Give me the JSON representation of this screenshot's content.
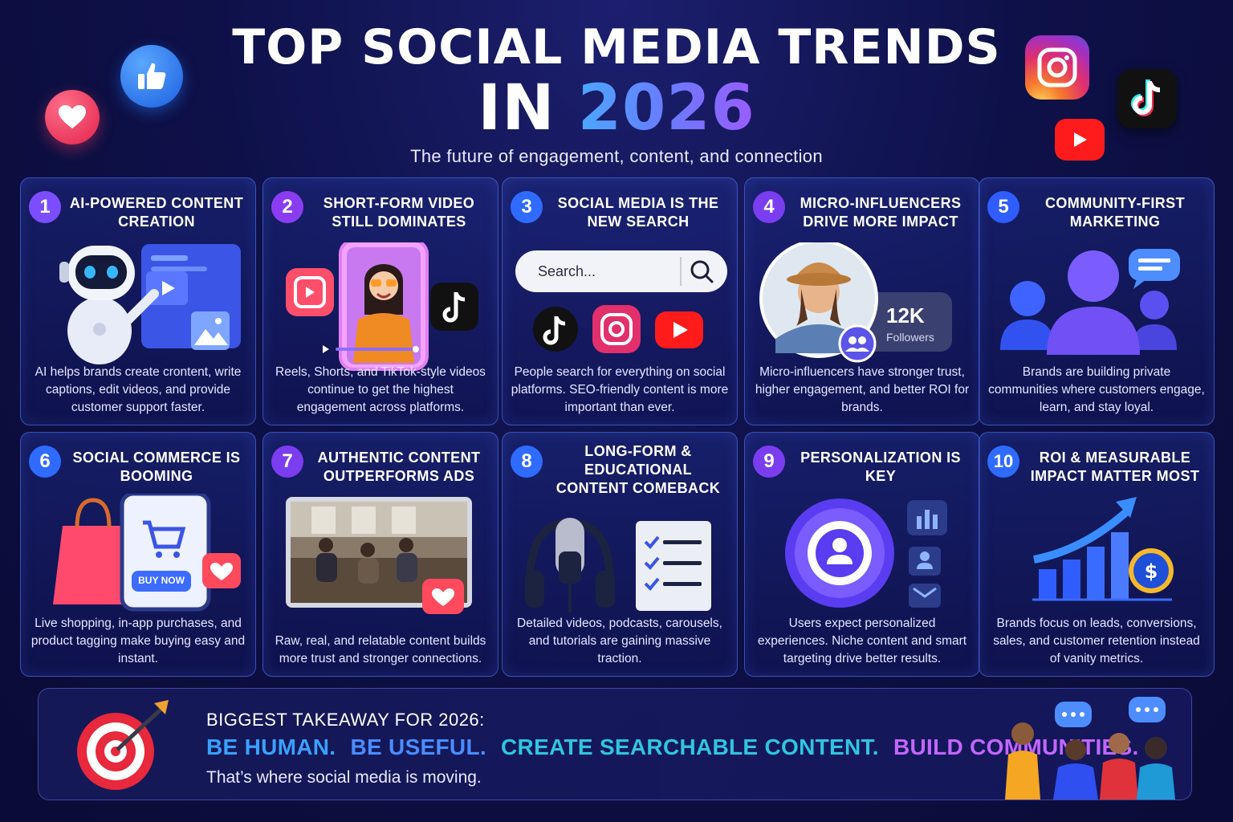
{
  "header": {
    "title_line1": "TOP SOCIAL MEDIA TRENDS",
    "title_in": "IN",
    "title_year": "2026",
    "subtitle": "The future of engagement, content, and connection"
  },
  "trends": [
    {
      "number": "1",
      "title": "AI-POWERED CONTENT CREATION",
      "description": "AI helps brands create crontent, write captions, edit videos, and provide customer support faster.",
      "color": "#7b4dff"
    },
    {
      "number": "2",
      "title": "SHORT-FORM VIDEO STILL DOMINATES",
      "description": "Reels, Shorts, and TikTok-style videos continue to get the highest engagement across platforms.",
      "color": "#8a3df0"
    },
    {
      "number": "3",
      "title": "SOCIAL MEDIA IS THE NEW SEARCH",
      "description": "People search for everything on social platforms. SEO-friendly content is more important than ever.",
      "color": "#2f6bff",
      "search_placeholder": "Search..."
    },
    {
      "number": "4",
      "title": "MICRO-INFLUENCERS DRIVE MORE IMPACT",
      "description": "Micro-influencers have stronger trust, higher engagement, and better ROI for brands.",
      "color": "#7b3df0",
      "followers_count": "12K",
      "followers_label": "Followers"
    },
    {
      "number": "5",
      "title": "COMMUNITY-FIRST MARKETING",
      "description": "Brands are building private communities where customers engage, learn, and stay loyal.",
      "color": "#2f5dff"
    },
    {
      "number": "6",
      "title": "SOCIAL COMMERCE IS BOOMING",
      "description": "Live shopping, in-app purchases, and product tagging make buying easy and instant.",
      "color": "#2f6bff",
      "button_label": "BUY NOW"
    },
    {
      "number": "7",
      "title": "AUTHENTIC CONTENT OUTPERFORMS ADS",
      "description": "Raw, real, and relatable content builds more trust and stronger connections.",
      "color": "#7b3df0"
    },
    {
      "number": "8",
      "title": "LONG-FORM & EDUCATIONAL CONTENT COMEBACK",
      "description": "Detailed videos, podcasts, carousels, and tutorials are gaining massive traction.",
      "color": "#2f6bff"
    },
    {
      "number": "9",
      "title": "PERSONALIZATION IS KEY",
      "description": "Users expect personalized experiences. Niche content and smart targeting drive better results.",
      "color": "#7b3df0"
    },
    {
      "number": "10",
      "title": "ROI & MEASURABLE IMPACT MATTER MOST",
      "description": "Brands focus on leads, conversions, sales, and customer retention instead of vanity metrics.",
      "color": "#2f6bff"
    }
  ],
  "takeaway": {
    "heading": "BIGGEST TAKEAWAY FOR 2026:",
    "phrases": [
      {
        "text": "BE HUMAN.",
        "color": "#3aa0ff"
      },
      {
        "text": "BE USEFUL.",
        "color": "#4b8cff"
      },
      {
        "text": "CREATE SEARCHABLE CONTENT.",
        "color": "#2fc6e0"
      },
      {
        "text": "BUILD COMMUNITIES.",
        "color": "#c266ff"
      }
    ],
    "footer": "That’s where social media is moving."
  },
  "icons": [
    "heart-icon",
    "thumbs-up-icon",
    "instagram-icon",
    "tiktok-icon",
    "youtube-icon",
    "target-icon",
    "people-chat-icon"
  ]
}
